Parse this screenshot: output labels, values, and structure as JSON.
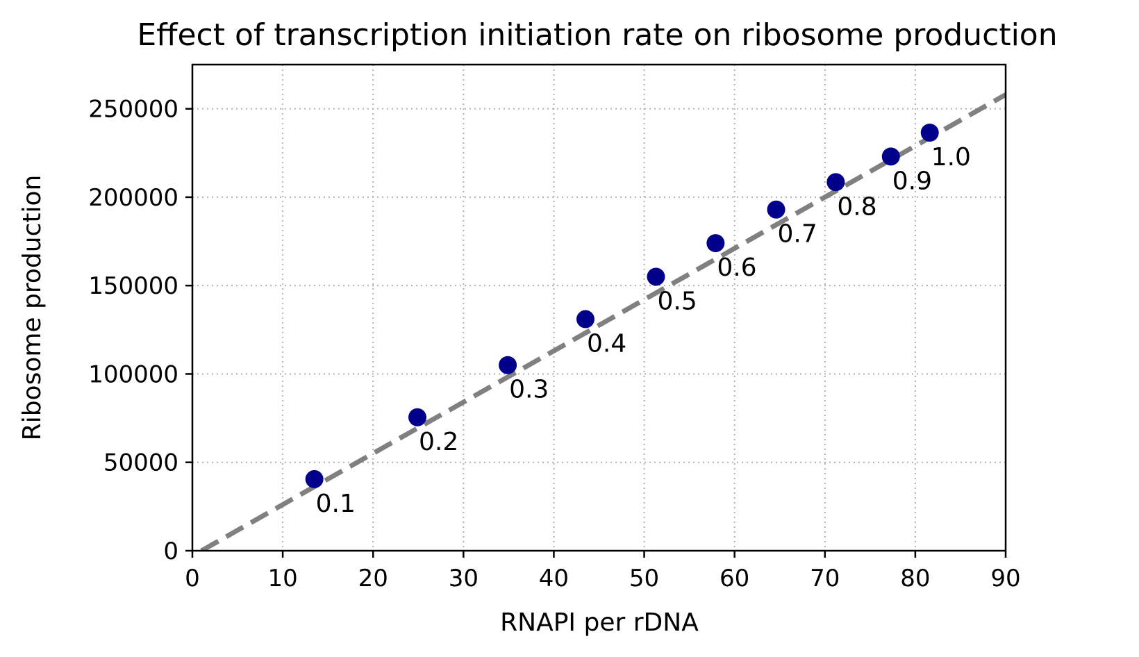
{
  "chart_data": {
    "type": "scatter",
    "title": "Effect of transcription initiation rate on ribosome production",
    "xlabel": "RNAPI per rDNA",
    "ylabel": "Ribosome production",
    "xlim": [
      0,
      90
    ],
    "ylim": [
      0,
      275000
    ],
    "xticks": [
      0,
      10,
      20,
      30,
      40,
      50,
      60,
      70,
      80,
      90
    ],
    "yticks": [
      0,
      50000,
      100000,
      150000,
      200000,
      250000
    ],
    "grid": true,
    "points": [
      {
        "x": 13.5,
        "y": 40500,
        "label": "0.1"
      },
      {
        "x": 24.9,
        "y": 75500,
        "label": "0.2"
      },
      {
        "x": 34.9,
        "y": 105000,
        "label": "0.3"
      },
      {
        "x": 43.5,
        "y": 131000,
        "label": "0.4"
      },
      {
        "x": 51.3,
        "y": 155000,
        "label": "0.5"
      },
      {
        "x": 57.9,
        "y": 174000,
        "label": "0.6"
      },
      {
        "x": 64.6,
        "y": 193000,
        "label": "0.7"
      },
      {
        "x": 71.2,
        "y": 208500,
        "label": "0.8"
      },
      {
        "x": 77.3,
        "y": 223000,
        "label": "0.9"
      },
      {
        "x": 81.6,
        "y": 236500,
        "label": "1.0"
      }
    ],
    "fit_line": {
      "x": [
        1,
        90
      ],
      "y": [
        0,
        258000
      ]
    },
    "colors": {
      "points": "#00008b",
      "fit_line": "#808080",
      "grid": "#b0b0b0",
      "axes": "#000000"
    }
  }
}
